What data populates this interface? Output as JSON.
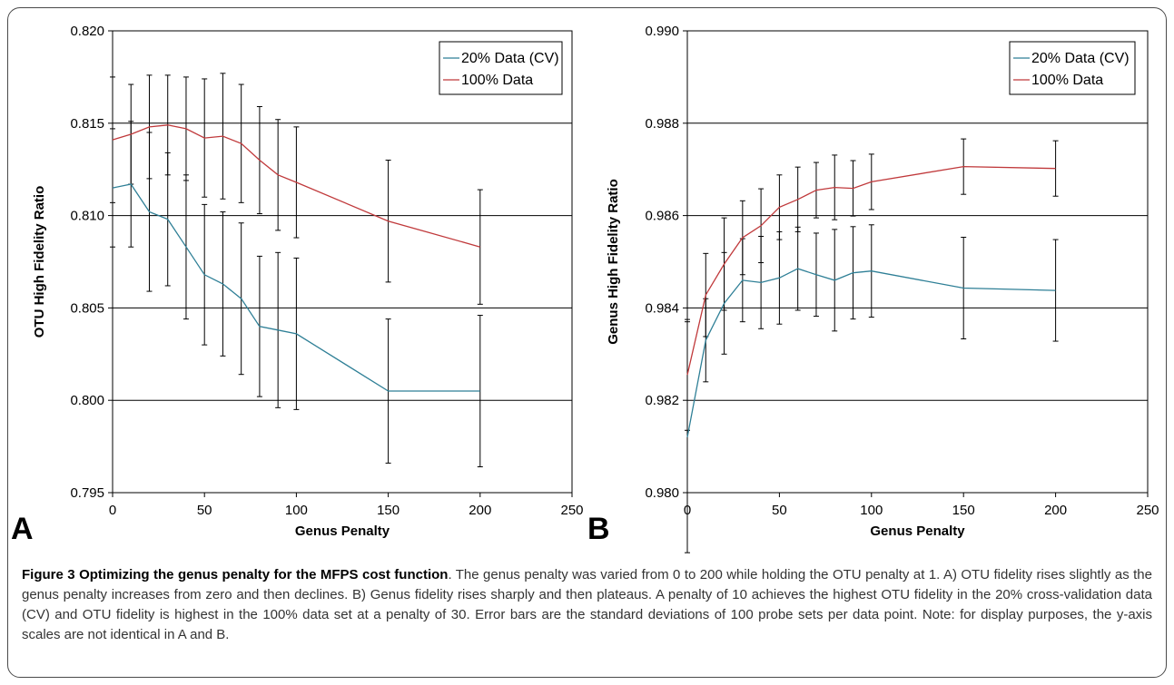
{
  "caption": {
    "label": "Figure 3",
    "title": "Optimizing the genus penalty for the MFPS cost function",
    "text": ". The genus penalty was varied from 0 to 200 while holding the OTU penalty at 1. A) OTU fidelity rises slightly as the genus penalty increases from zero and then declines. B) Genus fidelity rises sharply and then plateaus. A penalty of 10 achieves the highest OTU fidelity in the 20% cross-validation data (CV) and OTU fidelity is highest in the 100% data set at a penalty of 30. Error bars are the standard deviations of 100 probe sets per data point. Note: for display purposes, the y-axis scales are not identical in A and B."
  },
  "colors": {
    "cv": "#2e7f96",
    "full": "#c0393b",
    "grid": "#000000",
    "errorbar": "#000000"
  },
  "chart_data": [
    {
      "type": "line",
      "panel": "A",
      "xlabel": "Genus Penalty",
      "ylabel": "OTU High Fidelity Ratio",
      "xlim": [
        0,
        250
      ],
      "ylim": [
        0.795,
        0.82
      ],
      "xticks": [
        0,
        50,
        100,
        150,
        200,
        250
      ],
      "yticks": [
        "0.795",
        "0.800",
        "0.805",
        "0.810",
        "0.815",
        "0.820"
      ],
      "grid": "horizontal",
      "legend_position": "top-right",
      "x": [
        0,
        10,
        20,
        30,
        40,
        50,
        60,
        70,
        80,
        90,
        100,
        150,
        200
      ],
      "series": [
        {
          "name": "20% Data (CV)",
          "values": [
            0.8115,
            0.8117,
            0.8102,
            0.8098,
            0.8083,
            0.8068,
            0.8063,
            0.8055,
            0.804,
            0.8038,
            0.8036,
            0.8005,
            0.8005
          ],
          "errors": [
            0.0032,
            0.0034,
            0.0043,
            0.0036,
            0.0039,
            0.0038,
            0.0039,
            0.0041,
            0.0038,
            0.0042,
            0.0041,
            0.0039,
            0.0041
          ]
        },
        {
          "name": "100% Data",
          "values": [
            0.8141,
            0.8144,
            0.8148,
            0.8149,
            0.8147,
            0.8142,
            0.8143,
            0.8139,
            0.813,
            0.8122,
            0.8118,
            0.8097,
            0.8083
          ],
          "errors": [
            0.0034,
            0.0027,
            0.0028,
            0.0027,
            0.0028,
            0.0032,
            0.0034,
            0.0032,
            0.0029,
            0.003,
            0.003,
            0.0033,
            0.0031
          ]
        }
      ]
    },
    {
      "type": "line",
      "panel": "B",
      "xlabel": "Genus Penalty",
      "ylabel": "Genus High Fidelity Ratio",
      "xlim": [
        0,
        250
      ],
      "ylim": [
        0.98,
        0.99
      ],
      "xticks": [
        0,
        50,
        100,
        150,
        200,
        250
      ],
      "yticks": [
        "0.980",
        "0.982",
        "0.984",
        "0.986",
        "0.988",
        "0.990"
      ],
      "grid": "horizontal",
      "legend_position": "top-right",
      "x": [
        0,
        10,
        20,
        30,
        40,
        50,
        60,
        70,
        80,
        90,
        100,
        150,
        200
      ],
      "series": [
        {
          "name": "20% Data (CV)",
          "values": [
            0.9812,
            0.9833,
            0.9841,
            0.9846,
            0.98455,
            0.98465,
            0.98485,
            0.98472,
            0.9846,
            0.98476,
            0.9848,
            0.98443,
            0.98438
          ],
          "errors": [
            0.0025,
            0.0009,
            0.0011,
            0.0009,
            0.001,
            0.001,
            0.0009,
            0.0009,
            0.0011,
            0.001,
            0.001,
            0.0011,
            0.0011
          ]
        },
        {
          "name": "100% Data",
          "values": [
            0.98255,
            0.98428,
            0.98495,
            0.98552,
            0.98578,
            0.98618,
            0.98635,
            0.98655,
            0.98661,
            0.98659,
            0.98673,
            0.98706,
            0.98702
          ],
          "errors": [
            0.0012,
            0.0009,
            0.001,
            0.0008,
            0.0008,
            0.0007,
            0.0007,
            0.0006,
            0.0007,
            0.0006,
            0.0006,
            0.0006,
            0.0006
          ]
        }
      ]
    }
  ]
}
